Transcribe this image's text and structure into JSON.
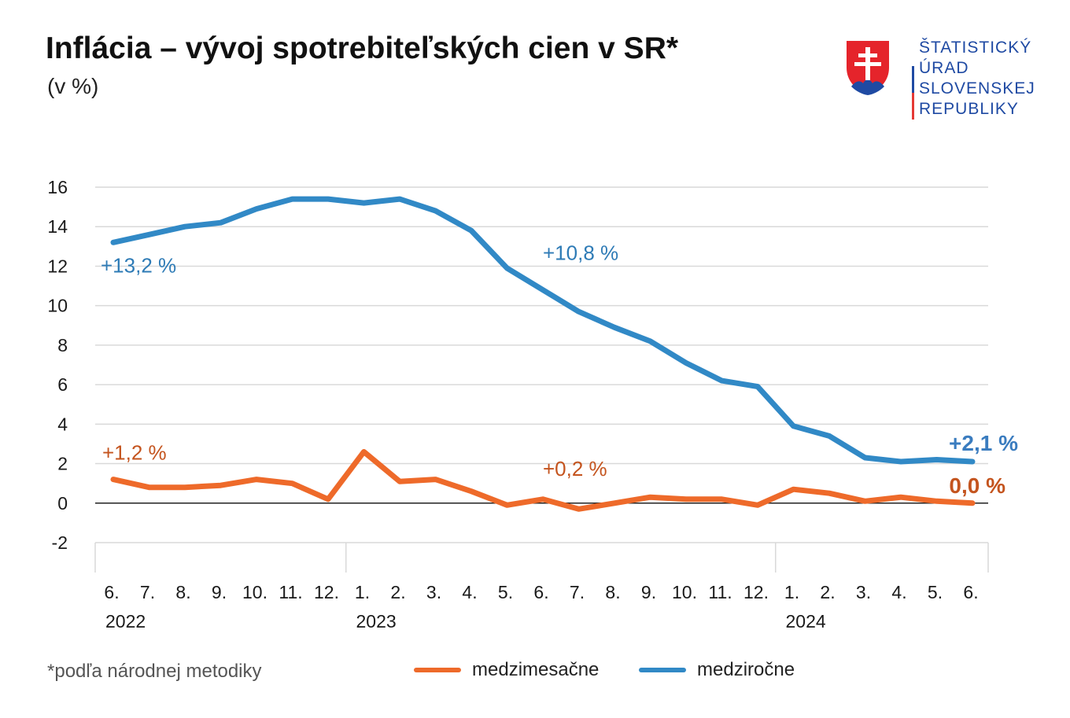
{
  "header": {
    "title": "Inflácia – vývoj spotrebiteľských cien v SR*",
    "subtitle": "(v %)"
  },
  "logo": {
    "lines": [
      "ŠTATISTICKÝ",
      "ÚRAD",
      "SLOVENSKEJ",
      "REPUBLIKY"
    ],
    "text_color": "#1f4aa3",
    "bar_colors": [
      "#ffffff",
      "#1f4aa3",
      "#e53935"
    ]
  },
  "footnote": "*podľa národnej metodiky",
  "chart_data": {
    "type": "line",
    "categories": [
      "6.",
      "7.",
      "8.",
      "9.",
      "10.",
      "11.",
      "12.",
      "1.",
      "2.",
      "3.",
      "4.",
      "5.",
      "6.",
      "7.",
      "8.",
      "9.",
      "10.",
      "11.",
      "12.",
      "1.",
      "2.",
      "3.",
      "4.",
      "5.",
      "6."
    ],
    "year_labels": [
      {
        "label": "2022",
        "index": 0
      },
      {
        "label": "2023",
        "index": 7
      },
      {
        "label": "2024",
        "index": 19
      }
    ],
    "year_separators_before_index": [
      7,
      19
    ],
    "yticks": [
      "-2",
      "0",
      "2",
      "4",
      "6",
      "8",
      "10",
      "12",
      "14",
      "16"
    ],
    "ylim": [
      -2,
      16
    ],
    "grid": true,
    "legend_position": "bottom",
    "series": [
      {
        "name": "medzimesačne",
        "color": "#ee6a2a",
        "values": [
          1.2,
          0.8,
          0.8,
          0.9,
          1.2,
          1.0,
          0.2,
          2.6,
          1.1,
          1.2,
          0.6,
          -0.1,
          0.2,
          -0.3,
          0.0,
          0.3,
          0.2,
          0.2,
          -0.1,
          0.7,
          0.5,
          0.1,
          0.3,
          0.1,
          0.0
        ]
      },
      {
        "name": "medziročne",
        "color": "#3189c6",
        "values": [
          13.2,
          13.6,
          14.0,
          14.2,
          14.9,
          15.4,
          15.4,
          15.2,
          15.4,
          14.8,
          13.8,
          11.9,
          10.8,
          9.7,
          8.9,
          8.2,
          7.1,
          6.2,
          5.9,
          3.9,
          3.4,
          2.3,
          2.1,
          2.2,
          2.1
        ]
      }
    ],
    "annotations": [
      {
        "text": "+13,2 %",
        "series": "medziročne",
        "index": 0,
        "color": "#2e7bb6",
        "bold": false
      },
      {
        "text": "+10,8 %",
        "series": "medziročne",
        "index": 12,
        "color": "#2e7bb6",
        "bold": false
      },
      {
        "text": "+2,1 %",
        "series": "medziročne",
        "index": 24,
        "color": "#3a7cbf",
        "bold": true
      },
      {
        "text": "+1,2 %",
        "series": "medzimesačne",
        "index": 0,
        "color": "#c4541e",
        "bold": false
      },
      {
        "text": "+0,2 %",
        "series": "medzimesačne",
        "index": 12,
        "color": "#c4541e",
        "bold": false
      },
      {
        "text": "0,0 %",
        "series": "medzimesačne",
        "index": 24,
        "color": "#c4541e",
        "bold": true
      }
    ]
  }
}
